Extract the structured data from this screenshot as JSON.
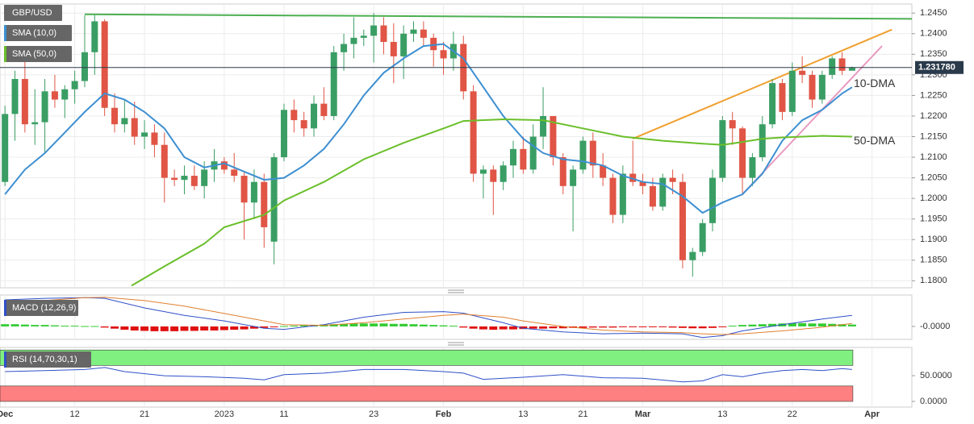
{
  "chart_data": [
    {
      "type": "candlestick",
      "title": "GBP/USD",
      "up_color": "#3a9e64",
      "down_color": "#e05545",
      "xlim": [
        -0.5,
        91
      ],
      "ylim": [
        1.1783,
        1.2472
      ],
      "grid": true,
      "xticks": [
        {
          "value": 0,
          "label": "Dec"
        },
        {
          "value": 7,
          "label": "12"
        },
        {
          "value": 14,
          "label": "21"
        },
        {
          "value": 22,
          "label": "2023"
        },
        {
          "value": 28,
          "label": "11"
        },
        {
          "value": 37,
          "label": "23"
        },
        {
          "value": 44,
          "label": "Feb"
        },
        {
          "value": 52,
          "label": "13"
        },
        {
          "value": 58,
          "label": "21"
        },
        {
          "value": 64,
          "label": "Mar"
        },
        {
          "value": 72,
          "label": "13"
        },
        {
          "value": 79,
          "label": "22"
        },
        {
          "value": 87,
          "label": "Apr"
        }
      ],
      "yticks": [
        {
          "value": 1.245,
          "label": "1.2450"
        },
        {
          "value": 1.24,
          "label": "1.2400"
        },
        {
          "value": 1.235,
          "label": "1.2350"
        },
        {
          "value": 1.23,
          "label": "1.2300"
        },
        {
          "value": 1.225,
          "label": "1.2250"
        },
        {
          "value": 1.22,
          "label": "1.2200"
        },
        {
          "value": 1.215,
          "label": "1.2150"
        },
        {
          "value": 1.21,
          "label": "1.2100"
        },
        {
          "value": 1.205,
          "label": "1.2050"
        },
        {
          "value": 1.2,
          "label": "1.2000"
        },
        {
          "value": 1.195,
          "label": "1.1950"
        },
        {
          "value": 1.19,
          "label": "1.1900"
        },
        {
          "value": 1.185,
          "label": "1.1850"
        },
        {
          "value": 1.18,
          "label": "1.1800"
        }
      ],
      "last_value": 1.23178,
      "last_label": "1.231780",
      "ohlc": [
        [
          1.204,
          1.2225,
          1.203,
          1.2205
        ],
        [
          1.2205,
          1.231,
          1.214,
          1.229
        ],
        [
          1.229,
          1.2345,
          1.216,
          1.218
        ],
        [
          1.218,
          1.2265,
          1.213,
          1.2185
        ],
        [
          1.2185,
          1.229,
          1.211,
          1.226
        ],
        [
          1.226,
          1.23,
          1.222,
          1.224
        ],
        [
          1.224,
          1.2275,
          1.2195,
          1.2265
        ],
        [
          1.2265,
          1.231,
          1.223,
          1.2285
        ],
        [
          1.2285,
          1.2445,
          1.227,
          1.2355
        ],
        [
          1.2355,
          1.2445,
          1.23,
          1.243
        ],
        [
          1.243,
          1.2435,
          1.22,
          1.222
        ],
        [
          1.222,
          1.2255,
          1.216,
          1.218
        ],
        [
          1.218,
          1.224,
          1.216,
          1.2195
        ],
        [
          1.2195,
          1.2235,
          1.213,
          1.215
        ],
        [
          1.215,
          1.219,
          1.212,
          1.216
        ],
        [
          1.216,
          1.218,
          1.21,
          1.213
        ],
        [
          1.213,
          1.216,
          1.199,
          1.205
        ],
        [
          1.205,
          1.207,
          1.203,
          1.2045
        ],
        [
          1.2045,
          1.208,
          1.201,
          1.2055
        ],
        [
          1.2055,
          1.208,
          1.202,
          1.203
        ],
        [
          1.203,
          1.209,
          1.2,
          1.207
        ],
        [
          1.207,
          1.212,
          1.204,
          1.209
        ],
        [
          1.209,
          1.21,
          1.206,
          1.207
        ],
        [
          1.207,
          1.211,
          1.204,
          1.2055
        ],
        [
          1.2055,
          1.2065,
          1.19,
          1.199
        ],
        [
          1.199,
          1.207,
          1.195,
          1.204
        ],
        [
          1.204,
          1.206,
          1.188,
          1.193
        ],
        [
          1.1895,
          1.211,
          1.184,
          1.21
        ],
        [
          1.21,
          1.223,
          1.209,
          1.2215
        ],
        [
          1.2215,
          1.224,
          1.216,
          1.219
        ],
        [
          1.219,
          1.221,
          1.215,
          1.217
        ],
        [
          1.217,
          1.225,
          1.215,
          1.223
        ],
        [
          1.223,
          1.227,
          1.219,
          1.22
        ],
        [
          1.22,
          1.237,
          1.219,
          1.2355
        ],
        [
          1.2355,
          1.24,
          1.231,
          1.2375
        ],
        [
          1.2375,
          1.244,
          1.234,
          1.239
        ],
        [
          1.239,
          1.241,
          1.237,
          1.2395
        ],
        [
          1.2395,
          1.245,
          1.233,
          1.242
        ],
        [
          1.242,
          1.244,
          1.235,
          1.238
        ],
        [
          1.238,
          1.2425,
          1.228,
          1.2345
        ],
        [
          1.2345,
          1.242,
          1.229,
          1.24
        ],
        [
          1.24,
          1.243,
          1.238,
          1.241
        ],
        [
          1.241,
          1.243,
          1.237,
          1.239
        ],
        [
          1.239,
          1.24,
          1.232,
          1.236
        ],
        [
          1.236,
          1.238,
          1.23,
          1.234
        ],
        [
          1.234,
          1.2405,
          1.231,
          1.2375
        ],
        [
          1.2375,
          1.2395,
          1.224,
          1.226
        ],
        [
          1.226,
          1.2275,
          1.204,
          1.206
        ],
        [
          1.206,
          1.208,
          1.2,
          1.207
        ],
        [
          1.207,
          1.208,
          1.196,
          1.204
        ],
        [
          1.204,
          1.209,
          1.202,
          1.208
        ],
        [
          1.208,
          1.214,
          1.205,
          1.212
        ],
        [
          1.212,
          1.215,
          1.206,
          1.207
        ],
        [
          1.207,
          1.218,
          1.206,
          1.215
        ],
        [
          1.215,
          1.227,
          1.212,
          1.22
        ],
        [
          1.22,
          1.22,
          1.208,
          1.21
        ],
        [
          1.21,
          1.211,
          1.201,
          1.203
        ],
        [
          1.203,
          1.208,
          1.192,
          1.207
        ],
        [
          1.207,
          1.215,
          1.206,
          1.214
        ],
        [
          1.214,
          1.216,
          1.205,
          1.208
        ],
        [
          1.208,
          1.211,
          1.203,
          1.205
        ],
        [
          1.205,
          1.206,
          1.194,
          1.196
        ],
        [
          1.196,
          1.208,
          1.194,
          1.206
        ],
        [
          1.206,
          1.214,
          1.203,
          1.204
        ],
        [
          1.204,
          1.206,
          1.201,
          1.203
        ],
        [
          1.203,
          1.205,
          1.197,
          1.198
        ],
        [
          1.198,
          1.206,
          1.197,
          1.205
        ],
        [
          1.205,
          1.207,
          1.201,
          1.204
        ],
        [
          1.204,
          1.206,
          1.183,
          1.185
        ],
        [
          1.185,
          1.188,
          1.181,
          1.187
        ],
        [
          1.187,
          1.195,
          1.186,
          1.194
        ],
        [
          1.194,
          1.207,
          1.192,
          1.205
        ],
        [
          1.205,
          1.22,
          1.204,
          1.219
        ],
        [
          1.219,
          1.221,
          1.213,
          1.217
        ],
        [
          1.217,
          1.2175,
          1.201,
          1.205
        ],
        [
          1.205,
          1.211,
          1.203,
          1.21
        ],
        [
          1.21,
          1.22,
          1.209,
          1.218
        ],
        [
          1.218,
          1.229,
          1.217,
          1.228
        ],
        [
          1.228,
          1.229,
          1.219,
          1.221
        ],
        [
          1.221,
          1.233,
          1.22,
          1.231
        ],
        [
          1.231,
          1.2345,
          1.228,
          1.23
        ],
        [
          1.23,
          1.231,
          1.222,
          1.224
        ],
        [
          1.224,
          1.231,
          1.223,
          1.23
        ],
        [
          1.23,
          1.2345,
          1.229,
          1.234
        ],
        [
          1.234,
          1.2355,
          1.23,
          1.231
        ],
        [
          1.231,
          1.232,
          1.2312,
          1.2318
        ]
      ],
      "lines": [
        {
          "name": "SMA (10,0)",
          "label": "10-DMA",
          "color": "#3d8fd1",
          "x": [
            0,
            2,
            4,
            6,
            8,
            10,
            12,
            14,
            16,
            18,
            20,
            22,
            24,
            26,
            28,
            30,
            32,
            34,
            36,
            38,
            40,
            42,
            44,
            46,
            48,
            50,
            52,
            54,
            56,
            58,
            60,
            62,
            64,
            66,
            68,
            70,
            72,
            74,
            76,
            78,
            80,
            82,
            84,
            85
          ],
          "values": [
            1.201,
            1.207,
            1.211,
            1.216,
            1.221,
            1.2255,
            1.224,
            1.221,
            1.217,
            1.21,
            1.2075,
            1.2085,
            1.2065,
            1.2045,
            1.205,
            1.208,
            1.212,
            1.218,
            1.225,
            1.2305,
            1.234,
            1.237,
            1.2375,
            1.234,
            1.227,
            1.22,
            1.2145,
            1.211,
            1.2095,
            1.209,
            1.208,
            1.2055,
            1.204,
            1.2035,
            1.2005,
            1.1965,
            1.199,
            1.201,
            1.206,
            1.214,
            1.219,
            1.2215,
            1.2255,
            1.227
          ]
        },
        {
          "name": "SMA (50,0)",
          "label": "50-DMA",
          "color": "#6abf2a",
          "x": [
            12.7,
            16,
            20,
            22,
            26,
            28,
            32,
            36,
            40,
            44,
            46,
            50,
            54,
            58,
            62,
            66,
            70,
            72,
            74,
            76,
            78,
            82,
            85
          ],
          "values": [
            1.1788,
            1.1835,
            1.189,
            1.193,
            1.196,
            1.1995,
            1.204,
            1.2095,
            1.2135,
            1.217,
            1.2188,
            1.2192,
            1.219,
            1.217,
            1.215,
            1.214,
            1.2133,
            1.213,
            1.2137,
            1.2145,
            1.2148,
            1.2152,
            1.215
          ]
        }
      ],
      "trendlines": [
        {
          "color": "#4caf50",
          "x": [
            8,
            91
          ],
          "values": [
            1.2447,
            1.2436
          ]
        },
        {
          "color": "#f0a030",
          "x": [
            63,
            89
          ],
          "values": [
            1.2145,
            1.241
          ]
        },
        {
          "color": "#e89ac0",
          "x": [
            74,
            88
          ],
          "values": [
            1.201,
            1.237
          ]
        }
      ]
    },
    {
      "type": "macd",
      "title": "MACD (12,26,9)",
      "ylim": [
        -0.0035,
        0.0085
      ],
      "yticks": [
        {
          "value": 0,
          "label": "-0.0000"
        }
      ],
      "up_color": "#33cc33",
      "down_color": "#e01010",
      "histogram": [
        0.0006,
        0.0006,
        0.0005,
        0.0004,
        0.0004,
        0.0003,
        0.0002,
        0.0002,
        0.0001,
        0.0001,
        -0.0003,
        -0.0006,
        -0.0009,
        -0.0011,
        -0.0012,
        -0.0013,
        -0.0013,
        -0.0013,
        -0.0012,
        -0.0012,
        -0.0011,
        -0.0011,
        -0.001,
        -0.0009,
        -0.0008,
        -0.0006,
        -0.0004,
        -0.0002,
        0.0001,
        0.0002,
        0.0003,
        0.0004,
        0.0005,
        0.0006,
        0.0007,
        0.0008,
        0.0008,
        0.0008,
        0.0008,
        0.0007,
        0.0007,
        0.0006,
        0.0005,
        0.0004,
        0.0003,
        0.0002,
        -0.0003,
        -0.0006,
        -0.0008,
        -0.0009,
        -0.0008,
        -0.0008,
        -0.0007,
        -0.0006,
        -0.0006,
        -0.0005,
        -0.0005,
        -0.0004,
        -0.0004,
        -0.0003,
        -0.0003,
        -0.0003,
        -0.0002,
        -0.0002,
        -0.0002,
        -0.0002,
        -0.0002,
        -0.0003,
        -0.0004,
        -0.0005,
        -0.0005,
        -0.0004,
        -0.0002,
        0.0002,
        0.0004,
        0.0005,
        0.0006,
        0.0007,
        0.0008,
        0.0009,
        0.0009,
        0.0008,
        0.0008,
        0.0007,
        0.0006,
        0.0005
      ],
      "series": [
        {
          "color": "#3050c8",
          "x": [
            0,
            4,
            8,
            10,
            14,
            18,
            22,
            26,
            28,
            32,
            36,
            40,
            44,
            46,
            50,
            52,
            56,
            60,
            64,
            68,
            70,
            72,
            74,
            78,
            82,
            85
          ],
          "values": [
            0.0072,
            0.0076,
            0.0078,
            0.0076,
            0.005,
            0.003,
            0.0015,
            -0.0005,
            -0.0008,
            0.0005,
            0.0025,
            0.0038,
            0.004,
            0.0036,
            0.001,
            -0.0005,
            -0.0015,
            -0.002,
            -0.0018,
            -0.002,
            -0.003,
            -0.0025,
            -0.0012,
            0.0005,
            0.002,
            0.003
          ]
        },
        {
          "color": "#e08030",
          "x": [
            0,
            4,
            8,
            10,
            14,
            18,
            22,
            26,
            28,
            32,
            36,
            40,
            44,
            46,
            50,
            52,
            56,
            60,
            64,
            68,
            70,
            72,
            74,
            78,
            82,
            85
          ],
          "values": [
            0.006,
            0.007,
            0.0078,
            0.0079,
            0.007,
            0.0055,
            0.0035,
            0.0015,
            0.0005,
            0.0003,
            0.001,
            0.002,
            0.003,
            0.0033,
            0.0025,
            0.0015,
            0.0,
            -0.001,
            -0.0015,
            -0.0017,
            -0.002,
            -0.0022,
            -0.002,
            -0.0012,
            -0.0002,
            0.0008
          ]
        }
      ]
    },
    {
      "type": "rsi",
      "title": "RSI (14,70,30,1)",
      "ylim": [
        -11,
        105
      ],
      "yticks": [
        {
          "value": 50,
          "label": "50.0000"
        },
        {
          "value": 0,
          "label": "0.0000"
        }
      ],
      "overbought": [
        70,
        100
      ],
      "oversold": [
        0,
        30
      ],
      "overbought_color": "#80f080",
      "oversold_color": "#ff8080",
      "series": [
        {
          "color": "#3050c8",
          "x": [
            0,
            4,
            8,
            10,
            12,
            16,
            20,
            24,
            26,
            28,
            32,
            36,
            40,
            44,
            46,
            48,
            52,
            56,
            60,
            64,
            68,
            70,
            72,
            74,
            76,
            78,
            80,
            82,
            84,
            85
          ],
          "values": [
            58,
            60,
            62,
            66,
            58,
            50,
            48,
            45,
            42,
            52,
            55,
            62,
            62,
            58,
            55,
            43,
            47,
            52,
            46,
            45,
            38,
            40,
            52,
            48,
            55,
            60,
            62,
            60,
            64,
            62
          ]
        }
      ]
    }
  ]
}
